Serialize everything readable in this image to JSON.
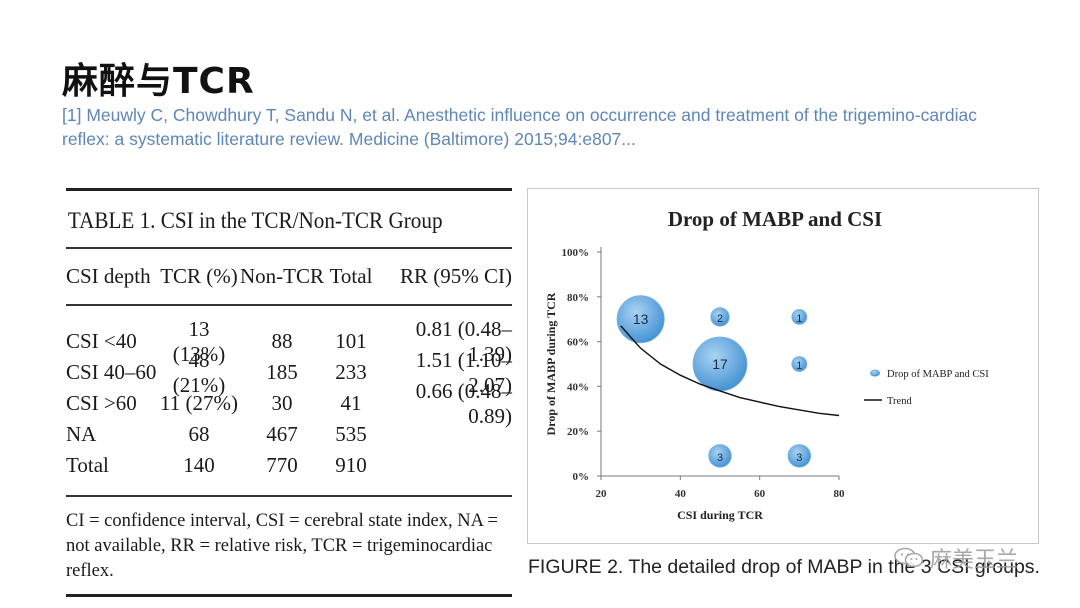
{
  "slide": {
    "title": "麻醉与TCR",
    "reference": "[1]  Meuwly C, Chowdhury T, Sandu N, et al. Anesthetic influence on occurrence and treatment of the trigemino-cardiac reflex: a systematic literature review. Medicine (Baltimore) 2015;94:e807..."
  },
  "table": {
    "title": "TABLE 1.  CSI in the TCR/Non-TCR Group",
    "headers": [
      "CSI depth",
      "TCR (%)",
      "Non-TCR",
      "Total",
      "RR (95% CI)"
    ],
    "rows": [
      [
        "CSI <40",
        "13 (13%)",
        "88",
        "101",
        "0.81 (0.48–1.39)"
      ],
      [
        "CSI 40–60",
        "48 (21%)",
        "185",
        "233",
        "1.51 (1.10–2.07)"
      ],
      [
        "CSI >60",
        "11 (27%)",
        "30",
        "41",
        "0.66 (0.48–0.89)"
      ],
      [
        "NA",
        "68",
        "467",
        "535",
        ""
      ],
      [
        "Total",
        "140",
        "770",
        "910",
        ""
      ]
    ],
    "footnote": "CI = confidence interval, CSI = cerebral state index, NA = not available, RR = relative risk, TCR = trigeminocardiac reflex."
  },
  "figure": {
    "caption": "FIGURE 2.  The detailed drop of MABP in the 3 CSI groups."
  },
  "watermark": "麻美玉兰",
  "chart_data": {
    "type": "scatter",
    "title": "Drop of MABP and CSI",
    "xlabel": "CSI during TCR",
    "ylabel": "Drop of MABP during TCR",
    "xlim": [
      20,
      80
    ],
    "ylim": [
      0,
      100
    ],
    "xticks": [
      "20",
      "40",
      "60",
      "80"
    ],
    "yticks": [
      "0%",
      "20%",
      "40%",
      "60%",
      "80%",
      "100%"
    ],
    "series": [
      {
        "name": "Drop of MABP and CSI",
        "points": [
          {
            "x": 30,
            "y": 70,
            "size": 13,
            "label": "13"
          },
          {
            "x": 50,
            "y": 71,
            "size": 2,
            "label": "2"
          },
          {
            "x": 70,
            "y": 71,
            "size": 1,
            "label": "1"
          },
          {
            "x": 50,
            "y": 50,
            "size": 17,
            "label": "17"
          },
          {
            "x": 70,
            "y": 50,
            "size": 1,
            "label": "1"
          },
          {
            "x": 50,
            "y": 9,
            "size": 3,
            "label": "3"
          },
          {
            "x": 70,
            "y": 9,
            "size": 3,
            "label": "3"
          }
        ]
      },
      {
        "name": "Trend",
        "line": [
          {
            "x": 25,
            "y": 67
          },
          {
            "x": 30,
            "y": 57
          },
          {
            "x": 35,
            "y": 50
          },
          {
            "x": 40,
            "y": 45
          },
          {
            "x": 45,
            "y": 41
          },
          {
            "x": 50,
            "y": 38
          },
          {
            "x": 55,
            "y": 35
          },
          {
            "x": 60,
            "y": 33
          },
          {
            "x": 65,
            "y": 31
          },
          {
            "x": 70,
            "y": 29.5
          },
          {
            "x": 75,
            "y": 28
          },
          {
            "x": 80,
            "y": 27
          }
        ]
      }
    ],
    "legend_position": "right",
    "grid": false,
    "colors": {
      "bubble": "#3f8fd2",
      "bubble_light": "#a9d3f3",
      "trend": "#111111"
    }
  }
}
